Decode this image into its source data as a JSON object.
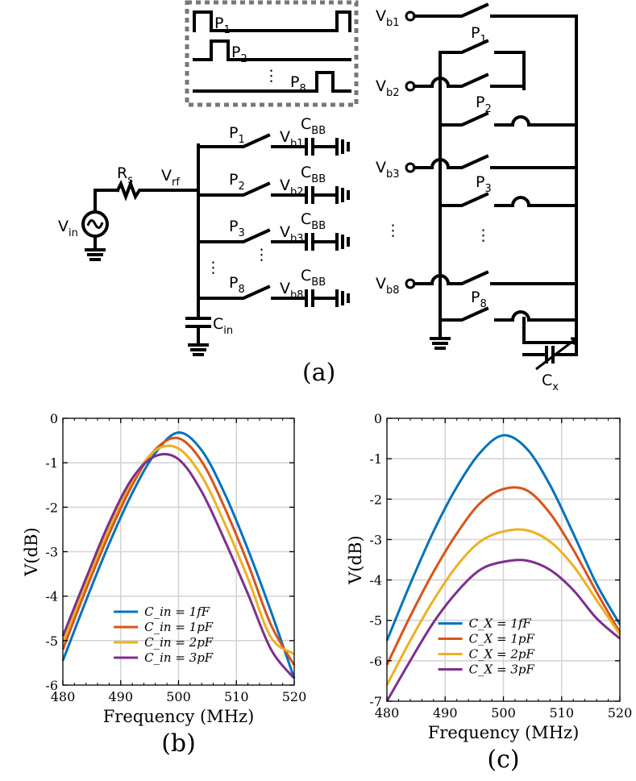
{
  "circuit": {
    "caption": "(a)",
    "vin": "V",
    "vin_sub": "in",
    "rs": "R",
    "rs_sub": "s",
    "vrf": "V",
    "vrf_sub": "rf",
    "cin": "C",
    "cin_sub": "in",
    "cbb": "C",
    "cbb_sub": "BB",
    "cx": "C",
    "cx_sub": "x",
    "vb": "V",
    "phase": "P",
    "phase_subs": [
      "1",
      "2",
      "3",
      "8"
    ],
    "vb_subs": [
      "b1",
      "b2",
      "b3",
      "b8"
    ],
    "ellipsis": "⋮"
  },
  "plot_b": {
    "caption": "(b)",
    "legend": [
      "C_in = 1fF",
      "C_in = 1pF",
      "C_in = 2pF",
      "C_in = 3pF"
    ]
  },
  "plot_c": {
    "caption": "(c)",
    "legend": [
      "C_X = 1fF",
      "C_X = 1pF",
      "C_X = 2pF",
      "C_X = 3pF"
    ]
  },
  "chart_data": [
    {
      "type": "line",
      "xlabel": "Frequency (MHz)",
      "ylabel": "V(dB)",
      "xlim": [
        480,
        520
      ],
      "ylim": [
        -6,
        0
      ],
      "xticks": [
        480,
        490,
        500,
        510,
        520
      ],
      "yticks": [
        0,
        -1,
        -2,
        -3,
        -4,
        -5,
        -6
      ],
      "grid": true,
      "legend_position": "lower-center",
      "series": [
        {
          "name": "C_in = 1fF",
          "color": "#0072BD",
          "x": [
            480,
            484,
            488,
            492,
            496,
            500,
            504,
            508,
            512,
            516,
            520
          ],
          "y": [
            -5.45,
            -4.1,
            -2.82,
            -1.68,
            -0.78,
            -0.32,
            -0.72,
            -1.7,
            -2.95,
            -4.35,
            -5.85
          ]
        },
        {
          "name": "C_in = 1pF",
          "color": "#D95319",
          "x": [
            480,
            484,
            488,
            492,
            496,
            500,
            504,
            508,
            512,
            516,
            520
          ],
          "y": [
            -5.2,
            -3.85,
            -2.6,
            -1.5,
            -0.7,
            -0.45,
            -0.97,
            -2.02,
            -3.27,
            -4.65,
            -5.55
          ]
        },
        {
          "name": "C_in = 2pF",
          "color": "#EDB120",
          "x": [
            480,
            484,
            488,
            492,
            496,
            500,
            504,
            508,
            512,
            516,
            520
          ],
          "y": [
            -5.05,
            -3.72,
            -2.47,
            -1.4,
            -0.72,
            -0.68,
            -1.3,
            -2.37,
            -3.6,
            -4.93,
            -5.3
          ]
        },
        {
          "name": "C_in = 3pF",
          "color": "#7E2F8E",
          "x": [
            480,
            484,
            488,
            492,
            496,
            500,
            504,
            508,
            512,
            516,
            520
          ],
          "y": [
            -4.9,
            -3.6,
            -2.35,
            -1.35,
            -0.85,
            -0.92,
            -1.65,
            -2.75,
            -3.95,
            -5.2,
            -5.85
          ]
        }
      ]
    },
    {
      "type": "line",
      "xlabel": "Frequency (MHz)",
      "ylabel": "V(dB)",
      "xlim": [
        480,
        520
      ],
      "ylim": [
        -7,
        0
      ],
      "xticks": [
        480,
        490,
        500,
        510,
        520
      ],
      "yticks": [
        0,
        -1,
        -2,
        -3,
        -4,
        -5,
        -6,
        -7
      ],
      "grid": true,
      "legend_position": "lower-center",
      "series": [
        {
          "name": "C_X = 1fF",
          "color": "#0072BD",
          "x": [
            480,
            484,
            488,
            492,
            496,
            500,
            504,
            508,
            512,
            516,
            520
          ],
          "y": [
            -5.5,
            -4.1,
            -2.8,
            -1.7,
            -0.85,
            -0.42,
            -0.75,
            -1.65,
            -2.85,
            -4.1,
            -5.1
          ]
        },
        {
          "name": "C_X = 1pF",
          "color": "#D95319",
          "x": [
            480,
            484,
            488,
            492,
            496,
            500,
            504,
            508,
            512,
            516,
            520
          ],
          "y": [
            -6.1,
            -4.9,
            -3.8,
            -2.85,
            -2.1,
            -1.75,
            -1.78,
            -2.35,
            -3.25,
            -4.3,
            -5.3
          ]
        },
        {
          "name": "C_X = 2pF",
          "color": "#EDB120",
          "x": [
            480,
            484,
            488,
            492,
            496,
            500,
            504,
            508,
            512,
            516,
            520
          ],
          "y": [
            -6.6,
            -5.5,
            -4.5,
            -3.65,
            -3.05,
            -2.8,
            -2.77,
            -3.05,
            -3.65,
            -4.5,
            -5.35
          ]
        },
        {
          "name": "C_X = 3pF",
          "color": "#7E2F8E",
          "x": [
            480,
            484,
            488,
            492,
            496,
            500,
            504,
            508,
            512,
            516,
            520
          ],
          "y": [
            -7.0,
            -6.0,
            -5.05,
            -4.3,
            -3.75,
            -3.55,
            -3.52,
            -3.75,
            -4.25,
            -4.95,
            -5.45
          ]
        }
      ]
    }
  ]
}
